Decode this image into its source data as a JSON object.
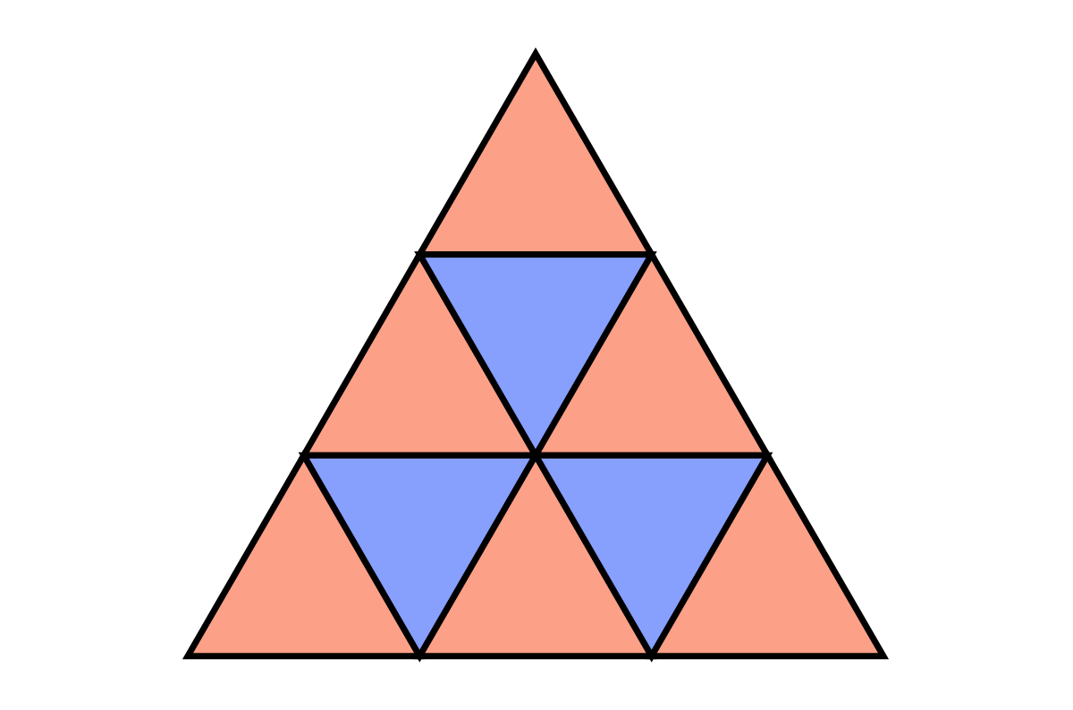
{
  "colors": {
    "background": "#ffffff",
    "upward_fill": "#fca088",
    "downward_fill": "#879ffd",
    "outline": "#000000"
  },
  "figure": {
    "shape": "triangle",
    "subdivisions_per_side": 3,
    "cells": [
      {
        "row": 0,
        "col": 0,
        "orientation": "up",
        "color": "salmon"
      },
      {
        "row": 1,
        "col": 0,
        "orientation": "up",
        "color": "salmon"
      },
      {
        "row": 1,
        "col": 1,
        "orientation": "down",
        "color": "blue"
      },
      {
        "row": 1,
        "col": 2,
        "orientation": "up",
        "color": "salmon"
      },
      {
        "row": 2,
        "col": 0,
        "orientation": "up",
        "color": "salmon"
      },
      {
        "row": 2,
        "col": 1,
        "orientation": "down",
        "color": "blue"
      },
      {
        "row": 2,
        "col": 2,
        "orientation": "up",
        "color": "salmon"
      },
      {
        "row": 2,
        "col": 3,
        "orientation": "down",
        "color": "blue"
      },
      {
        "row": 2,
        "col": 4,
        "orientation": "up",
        "color": "salmon"
      }
    ]
  }
}
